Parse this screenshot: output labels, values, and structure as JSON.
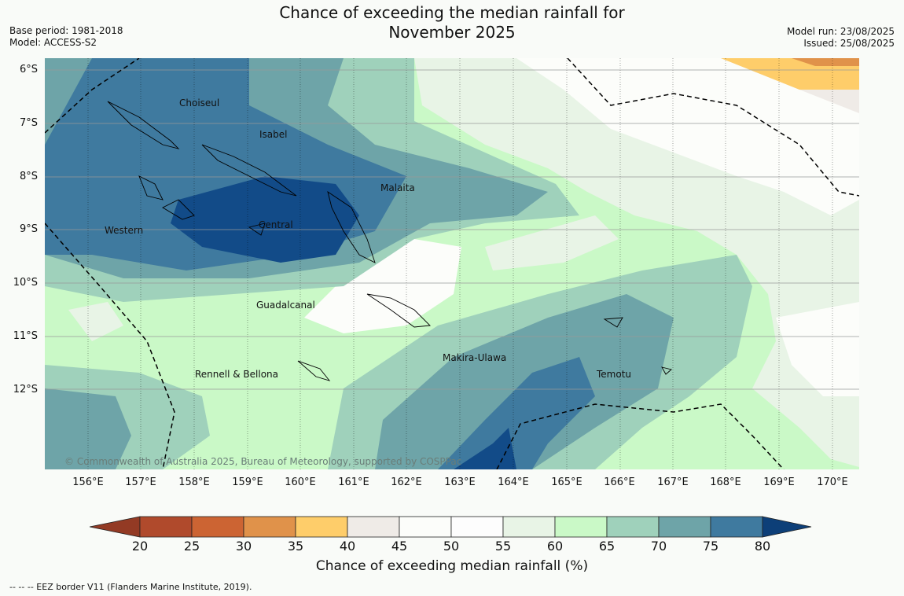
{
  "title_line1": "Chance of exceeding the median rainfall for",
  "title_line2": "November 2025",
  "base_period": "Base period: 1981-2018",
  "model": "Model: ACCESS-S2",
  "model_run": "Model run: 23/08/2025",
  "issued": "Issued: 25/08/2025",
  "lat_labels": [
    "6°S",
    "7°S",
    "8°S",
    "9°S",
    "10°S",
    "11°S",
    "12°S"
  ],
  "lon_labels": [
    "156°E",
    "157°E",
    "158°E",
    "159°E",
    "160°E",
    "161°E",
    "162°E",
    "163°E",
    "164°E",
    "165°E",
    "166°E",
    "167°E",
    "168°E",
    "169°E",
    "170°E"
  ],
  "places": [
    "Choiseul",
    "Isabel",
    "Malaita",
    "Western",
    "Central",
    "Guadalcanal",
    "Makira-Ulawa",
    "Temotu",
    "Rennell & Bellona"
  ],
  "copyright": "© Commonwealth of Australia 2025, Bureau of Meteorology, supported by COSPPac",
  "colorbar": {
    "ticks": [
      "20",
      "25",
      "30",
      "35",
      "40",
      "45",
      "50",
      "55",
      "60",
      "65",
      "70",
      "75",
      "80"
    ],
    "colors": [
      "#b04a2c",
      "#cc6433",
      "#e0924a",
      "#fecd6a",
      "#efebe7",
      "#fcfdfa",
      "#fdfdfd",
      "#e8f4e6",
      "#caf9c7",
      "#9fd1bb",
      "#6ea4a8",
      "#3f7a9f",
      "#124b88"
    ],
    "under_color": "#933a24",
    "over_color": "#0d3f78",
    "title": "Chance of exceeding median rainfall (%)"
  },
  "eez_note": "--  --  -- EEZ border V11 (Flanders Marine Institute, 2019)."
}
